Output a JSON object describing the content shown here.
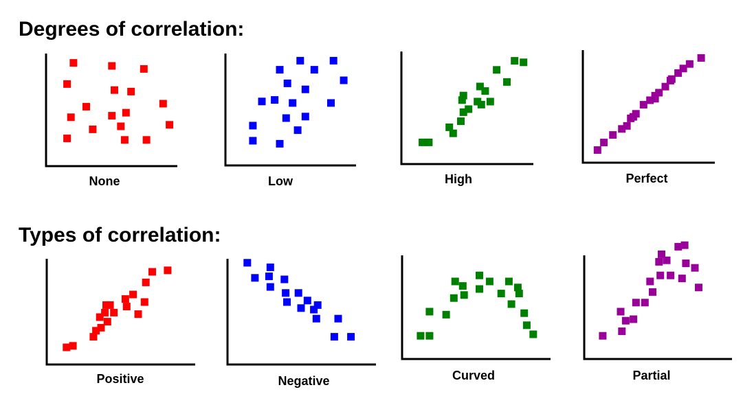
{
  "titles": {
    "degrees": "Degrees of correlation:",
    "types": "Types of correlation:"
  },
  "chart_data": [
    {
      "type": "scatter",
      "title": "None",
      "color": "#ff0000",
      "xlim": [
        0,
        10
      ],
      "ylim": [
        0,
        10
      ],
      "points": [
        [
          1.5,
          6.2
        ],
        [
          4.5,
          6.0
        ],
        [
          7.0,
          5.8
        ],
        [
          1.0,
          4.8
        ],
        [
          4.7,
          4.4
        ],
        [
          6.0,
          4.3
        ],
        [
          8.5,
          3.5
        ],
        [
          2.5,
          3.3
        ],
        [
          1.3,
          2.6
        ],
        [
          4.5,
          2.7
        ],
        [
          5.6,
          2.9
        ],
        [
          9.0,
          2.1
        ],
        [
          5.2,
          2.0
        ],
        [
          3.0,
          1.8
        ],
        [
          1.0,
          1.2
        ],
        [
          5.5,
          1.1
        ],
        [
          7.2,
          1.1
        ]
      ]
    },
    {
      "type": "scatter",
      "title": "Low",
      "color": "#0000ff",
      "xlim": [
        0,
        10
      ],
      "ylim": [
        0,
        10
      ],
      "points": [
        [
          5.2,
          6.3
        ],
        [
          7.8,
          6.3
        ],
        [
          3.6,
          5.7
        ],
        [
          6.3,
          5.7
        ],
        [
          8.6,
          5.0
        ],
        [
          4.2,
          4.8
        ],
        [
          5.6,
          4.4
        ],
        [
          2.2,
          3.6
        ],
        [
          3.2,
          3.7
        ],
        [
          4.6,
          3.5
        ],
        [
          7.6,
          3.5
        ],
        [
          4.1,
          2.5
        ],
        [
          5.6,
          2.6
        ],
        [
          1.5,
          2.0
        ],
        [
          5.0,
          1.7
        ],
        [
          1.5,
          1.0
        ],
        [
          3.6,
          0.8
        ]
      ]
    },
    {
      "type": "scatter",
      "title": "High",
      "color": "#008000",
      "xlim": [
        0,
        10
      ],
      "ylim": [
        0,
        10
      ],
      "points": [
        [
          8.2,
          6.2
        ],
        [
          8.9,
          6.1
        ],
        [
          6.8,
          5.6
        ],
        [
          7.6,
          4.8
        ],
        [
          5.5,
          4.5
        ],
        [
          5.9,
          4.2
        ],
        [
          4.2,
          3.9
        ],
        [
          5.6,
          3.3
        ],
        [
          4.2,
          2.8
        ],
        [
          6.3,
          3.5
        ],
        [
          4.6,
          3.0
        ],
        [
          5.3,
          3.5
        ],
        [
          3.1,
          1.8
        ],
        [
          4.0,
          2.2
        ],
        [
          3.4,
          1.4
        ],
        [
          1.0,
          0.8
        ],
        [
          1.5,
          0.8
        ],
        [
          4.1,
          3.6
        ]
      ]
    },
    {
      "type": "scatter",
      "title": "Perfect",
      "color": "#990099",
      "xlim": [
        0,
        10
      ],
      "ylim": [
        0,
        10
      ],
      "points": [
        [
          8.6,
          6.3
        ],
        [
          7.7,
          5.9
        ],
        [
          7.2,
          5.6
        ],
        [
          6.8,
          5.3
        ],
        [
          6.3,
          4.9
        ],
        [
          5.8,
          4.4
        ],
        [
          5.3,
          4.0
        ],
        [
          5.0,
          3.6
        ],
        [
          4.6,
          3.5
        ],
        [
          4.1,
          3.2
        ],
        [
          3.5,
          2.6
        ],
        [
          3.1,
          2.3
        ],
        [
          2.8,
          1.8
        ],
        [
          2.4,
          1.6
        ],
        [
          1.7,
          1.2
        ],
        [
          1.0,
          0.7
        ],
        [
          0.5,
          0.2
        ],
        [
          6.2,
          4.8
        ],
        [
          5.0,
          3.8
        ],
        [
          3.3,
          2.4
        ]
      ]
    },
    {
      "type": "scatter",
      "title": "Positive",
      "color": "#ff0000",
      "xlim": [
        0,
        10
      ],
      "ylim": [
        0,
        10
      ],
      "points": [
        [
          8.8,
          5.6
        ],
        [
          7.6,
          5.5
        ],
        [
          7.1,
          4.8
        ],
        [
          6.1,
          4.0
        ],
        [
          5.5,
          3.7
        ],
        [
          7.0,
          3.5
        ],
        [
          5.6,
          3.2
        ],
        [
          4.0,
          3.3
        ],
        [
          4.6,
          2.8
        ],
        [
          6.5,
          2.7
        ],
        [
          3.5,
          2.5
        ],
        [
          4.1,
          2.2
        ],
        [
          3.6,
          1.8
        ],
        [
          3.2,
          1.6
        ],
        [
          3.0,
          1.2
        ],
        [
          1.4,
          0.6
        ],
        [
          0.9,
          0.5
        ],
        [
          3.9,
          2.8
        ],
        [
          4.3,
          3.3
        ]
      ]
    },
    {
      "type": "scatter",
      "title": "Negative",
      "color": "#0000ff",
      "xlim": [
        0,
        10
      ],
      "ylim": [
        0,
        10
      ],
      "points": [
        [
          0.9,
          6.1
        ],
        [
          2.7,
          5.8
        ],
        [
          1.5,
          5.1
        ],
        [
          2.6,
          5.2
        ],
        [
          3.8,
          5.0
        ],
        [
          2.7,
          4.5
        ],
        [
          3.9,
          4.1
        ],
        [
          4.9,
          4.1
        ],
        [
          5.6,
          3.6
        ],
        [
          6.4,
          3.3
        ],
        [
          4.0,
          3.5
        ],
        [
          5.1,
          3.1
        ],
        [
          6.1,
          3.0
        ],
        [
          6.3,
          2.4
        ],
        [
          8.0,
          2.4
        ],
        [
          7.7,
          1.2
        ],
        [
          9.0,
          1.2
        ]
      ]
    },
    {
      "type": "scatter",
      "title": "Curved",
      "color": "#008000",
      "xlim": [
        0,
        10
      ],
      "ylim": [
        0,
        10
      ],
      "points": [
        [
          0.8,
          0.9
        ],
        [
          1.5,
          0.9
        ],
        [
          1.5,
          2.5
        ],
        [
          2.8,
          2.3
        ],
        [
          3.4,
          3.4
        ],
        [
          4.2,
          3.6
        ],
        [
          3.5,
          4.5
        ],
        [
          5.4,
          4.0
        ],
        [
          5.4,
          4.9
        ],
        [
          6.2,
          4.5
        ],
        [
          7.7,
          4.5
        ],
        [
          7.1,
          3.7
        ],
        [
          7.9,
          3.0
        ],
        [
          8.4,
          4.1
        ],
        [
          8.5,
          3.7
        ],
        [
          8.9,
          2.4
        ],
        [
          9.1,
          1.6
        ],
        [
          9.6,
          1.0
        ],
        [
          4.1,
          4.2
        ]
      ]
    },
    {
      "type": "scatter",
      "title": "Partial",
      "color": "#990099",
      "xlim": [
        0,
        10
      ],
      "ylim": [
        0,
        10
      ],
      "points": [
        [
          0.8,
          0.9
        ],
        [
          2.3,
          1.2
        ],
        [
          2.6,
          1.9
        ],
        [
          3.2,
          2.0
        ],
        [
          2.2,
          2.5
        ],
        [
          3.4,
          3.1
        ],
        [
          4.1,
          3.1
        ],
        [
          4.7,
          3.8
        ],
        [
          4.5,
          4.5
        ],
        [
          5.3,
          4.9
        ],
        [
          6.1,
          4.9
        ],
        [
          7.0,
          4.7
        ],
        [
          8.3,
          4.1
        ],
        [
          5.8,
          5.9
        ],
        [
          5.2,
          5.8
        ],
        [
          5.4,
          6.3
        ],
        [
          7.3,
          5.7
        ],
        [
          8.0,
          5.4
        ],
        [
          6.7,
          6.8
        ],
        [
          7.2,
          6.9
        ]
      ]
    }
  ]
}
